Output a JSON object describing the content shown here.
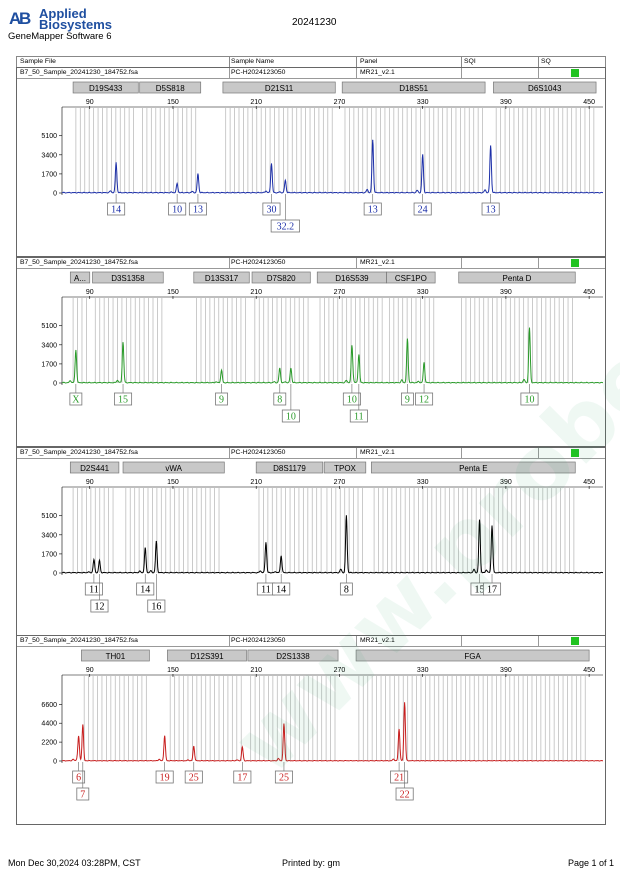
{
  "header": {
    "brand_line1": "Applied",
    "brand_line2": "Biosystems",
    "software": "GeneMapper Software 6",
    "run_date": "20241230",
    "columns": [
      "Sample File",
      "Sample Name",
      "Panel",
      "SQI",
      "SQ"
    ]
  },
  "watermark": "www.probe-com.cn",
  "footer": {
    "left": "Mon Dec 30,2024 03:28PM, CST",
    "mid": "Printed by: gm",
    "right": "Page 1 of 1"
  },
  "sq_color": "#22c322",
  "chart_data": [
    {
      "type": "line",
      "sample_file": "B7_50_Sample_20241230_184752.fsa",
      "sample_name": "PC-H2024123050",
      "panel": "MR21_v2.1",
      "color": "#1c2fa8",
      "xlim": [
        70,
        460
      ],
      "xticks": [
        90,
        150,
        210,
        270,
        330,
        390,
        450
      ],
      "ylim": [
        0,
        6500
      ],
      "yticks": [
        0,
        1700,
        3400,
        5100
      ],
      "loci": [
        {
          "name": "D19S433",
          "x0": 78,
          "x1": 125
        },
        {
          "name": "D5S818",
          "x0": 126,
          "x1": 170
        },
        {
          "name": "D21S11",
          "x0": 186,
          "x1": 267
        },
        {
          "name": "D18S51",
          "x0": 272,
          "x1": 375
        },
        {
          "name": "D6S1043",
          "x0": 381,
          "x1": 455
        }
      ],
      "peaks": [
        {
          "x": 109,
          "h": 2700
        },
        {
          "x": 153,
          "h": 800
        },
        {
          "x": 168,
          "h": 1700
        },
        {
          "x": 221,
          "h": 2600
        },
        {
          "x": 231,
          "h": 1100
        },
        {
          "x": 294,
          "h": 4700
        },
        {
          "x": 330,
          "h": 3400
        },
        {
          "x": 379,
          "h": 4200
        }
      ],
      "alleles": [
        {
          "x": 109,
          "row": 0,
          "label": "14"
        },
        {
          "x": 153,
          "row": 0,
          "label": "10"
        },
        {
          "x": 168,
          "row": 0,
          "label": "13"
        },
        {
          "x": 221,
          "row": 0,
          "label": "30"
        },
        {
          "x": 231,
          "row": 1,
          "label": "32.2"
        },
        {
          "x": 294,
          "row": 0,
          "label": "13"
        },
        {
          "x": 330,
          "row": 0,
          "label": "24"
        },
        {
          "x": 379,
          "row": 0,
          "label": "13"
        }
      ]
    },
    {
      "type": "line",
      "sample_file": "B7_50_Sample_20241230_184752.fsa",
      "sample_name": "PC-H2024123050",
      "panel": "MR21_v2.1",
      "color": "#2a9a2a",
      "xlim": [
        70,
        460
      ],
      "xticks": [
        90,
        150,
        210,
        270,
        330,
        390,
        450
      ],
      "ylim": [
        0,
        6500
      ],
      "yticks": [
        0,
        1700,
        3400,
        5100
      ],
      "loci": [
        {
          "name": "A...",
          "x0": 76,
          "x1": 90
        },
        {
          "name": "D3S1358",
          "x0": 92,
          "x1": 143
        },
        {
          "name": "D13S317",
          "x0": 165,
          "x1": 205
        },
        {
          "name": "D7S820",
          "x0": 207,
          "x1": 249
        },
        {
          "name": "D16S539",
          "x0": 254,
          "x1": 304
        },
        {
          "name": "CSF1PO",
          "x0": 304,
          "x1": 339
        },
        {
          "name": "Penta D",
          "x0": 356,
          "x1": 440
        }
      ],
      "peaks": [
        {
          "x": 80,
          "h": 2900
        },
        {
          "x": 114,
          "h": 3600
        },
        {
          "x": 185,
          "h": 1100
        },
        {
          "x": 227,
          "h": 1300
        },
        {
          "x": 235,
          "h": 1300
        },
        {
          "x": 279,
          "h": 3300
        },
        {
          "x": 284,
          "h": 2500
        },
        {
          "x": 319,
          "h": 3900
        },
        {
          "x": 331,
          "h": 1800
        },
        {
          "x": 407,
          "h": 4900
        }
      ],
      "alleles": [
        {
          "x": 80,
          "row": 0,
          "label": "X"
        },
        {
          "x": 114,
          "row": 0,
          "label": "15"
        },
        {
          "x": 185,
          "row": 0,
          "label": "9"
        },
        {
          "x": 227,
          "row": 0,
          "label": "8"
        },
        {
          "x": 235,
          "row": 1,
          "label": "10"
        },
        {
          "x": 279,
          "row": 0,
          "label": "10"
        },
        {
          "x": 284,
          "row": 1,
          "label": "11"
        },
        {
          "x": 319,
          "row": 0,
          "label": "9"
        },
        {
          "x": 331,
          "row": 0,
          "label": "12"
        },
        {
          "x": 407,
          "row": 0,
          "label": "10"
        }
      ]
    },
    {
      "type": "line",
      "sample_file": "B7_50_Sample_20241230_184752.fsa",
      "sample_name": "PC-H2024123050",
      "panel": "MR21_v2.1",
      "color": "#000000",
      "xlim": [
        70,
        460
      ],
      "xticks": [
        90,
        150,
        210,
        270,
        330,
        390,
        450
      ],
      "ylim": [
        0,
        6500
      ],
      "yticks": [
        0,
        1700,
        3400,
        5100
      ],
      "loci": [
        {
          "name": "D2S441",
          "x0": 76,
          "x1": 111
        },
        {
          "name": "vWA",
          "x0": 114,
          "x1": 187
        },
        {
          "name": "D8S1179",
          "x0": 210,
          "x1": 258
        },
        {
          "name": "TPOX",
          "x0": 259,
          "x1": 289
        },
        {
          "name": "Penta E",
          "x0": 293,
          "x1": 440
        }
      ],
      "peaks": [
        {
          "x": 93,
          "h": 1100
        },
        {
          "x": 97,
          "h": 1100
        },
        {
          "x": 130,
          "h": 2200
        },
        {
          "x": 138,
          "h": 2800
        },
        {
          "x": 217,
          "h": 2700
        },
        {
          "x": 228,
          "h": 1500
        },
        {
          "x": 275,
          "h": 5100
        },
        {
          "x": 371,
          "h": 4700
        },
        {
          "x": 380,
          "h": 4200
        }
      ],
      "alleles": [
        {
          "x": 93,
          "row": 0,
          "label": "11"
        },
        {
          "x": 97,
          "row": 1,
          "label": "12"
        },
        {
          "x": 130,
          "row": 0,
          "label": "14"
        },
        {
          "x": 138,
          "row": 1,
          "label": "16"
        },
        {
          "x": 217,
          "row": 0,
          "label": "11"
        },
        {
          "x": 228,
          "row": 0,
          "label": "14"
        },
        {
          "x": 275,
          "row": 0,
          "label": "8"
        },
        {
          "x": 371,
          "row": 0,
          "label": "15"
        },
        {
          "x": 380,
          "row": 0,
          "label": "17"
        }
      ]
    },
    {
      "type": "line",
      "sample_file": "B7_50_Sample_20241230_184752.fsa",
      "sample_name": "PC-H2024123050",
      "panel": "MR21_v2.1",
      "color": "#c81e1e",
      "xlim": [
        70,
        460
      ],
      "xticks": [
        90,
        150,
        210,
        270,
        330,
        390,
        450
      ],
      "ylim": [
        0,
        8500
      ],
      "yticks": [
        0,
        2200,
        4400,
        6600
      ],
      "loci": [
        {
          "name": "TH01",
          "x0": 84,
          "x1": 133
        },
        {
          "name": "D12S391",
          "x0": 146,
          "x1": 203
        },
        {
          "name": "D2S1338",
          "x0": 204,
          "x1": 269
        },
        {
          "name": "FGA",
          "x0": 282,
          "x1": 450
        }
      ],
      "peaks": [
        {
          "x": 82,
          "h": 2800
        },
        {
          "x": 85,
          "h": 4200
        },
        {
          "x": 144,
          "h": 2900
        },
        {
          "x": 165,
          "h": 1700
        },
        {
          "x": 200,
          "h": 1600
        },
        {
          "x": 230,
          "h": 4300
        },
        {
          "x": 313,
          "h": 3300
        },
        {
          "x": 317,
          "h": 6800
        }
      ],
      "alleles": [
        {
          "x": 82,
          "row": 0,
          "label": "6"
        },
        {
          "x": 85,
          "row": 1,
          "label": "7"
        },
        {
          "x": 144,
          "row": 0,
          "label": "19"
        },
        {
          "x": 165,
          "row": 0,
          "label": "25"
        },
        {
          "x": 200,
          "row": 0,
          "label": "17"
        },
        {
          "x": 230,
          "row": 0,
          "label": "25"
        },
        {
          "x": 313,
          "row": 0,
          "label": "21"
        },
        {
          "x": 317,
          "row": 1,
          "label": "22"
        }
      ]
    }
  ]
}
